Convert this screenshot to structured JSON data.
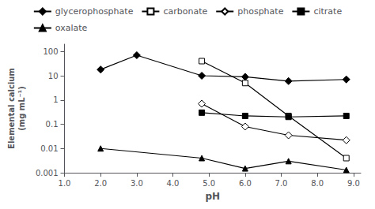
{
  "chart_data": {
    "type": "line",
    "log": "y",
    "color": "black",
    "xlabel": "pH",
    "ylabel": "Elemental calcium\n(mg mL⁻¹)",
    "xlim": [
      1.0,
      9.2
    ],
    "xticks": [
      {
        "value": 1,
        "label": "1.0"
      },
      {
        "value": 2,
        "label": "2.0"
      },
      {
        "value": 3,
        "label": "3.0"
      },
      {
        "value": 4,
        "label": "4.0"
      },
      {
        "value": 5,
        "label": "5.0"
      },
      {
        "value": 6,
        "label": "6.0"
      },
      {
        "value": 7,
        "label": "7.0"
      },
      {
        "value": 8,
        "label": "8.0"
      },
      {
        "value": 9,
        "label": "9.0"
      }
    ],
    "ylim": [
      0.001,
      200
    ],
    "yticks": [
      0.001,
      0.01,
      0.1,
      1,
      10,
      100
    ],
    "grid": false,
    "legend": "top",
    "series": [
      {
        "name": "glycerophosphate",
        "marker": "diamond",
        "x": [
          2.0,
          3.0,
          4.8,
          6.0,
          7.2,
          8.8
        ],
        "values": [
          18.0,
          70.0,
          10.0,
          9.0,
          6.0,
          7.0
        ]
      },
      {
        "name": "carbonate",
        "marker": "open-square",
        "x": [
          4.8,
          6.0,
          7.2,
          8.8
        ],
        "values": [
          40.0,
          5.0,
          0.22,
          0.004
        ]
      },
      {
        "name": "phosphate",
        "marker": "open-diamond",
        "x": [
          4.8,
          6.0,
          7.2,
          8.8
        ],
        "values": [
          0.7,
          0.08,
          0.035,
          0.022
        ]
      },
      {
        "name": "citrate",
        "marker": "square",
        "x": [
          4.8,
          6.0,
          7.2,
          8.8
        ],
        "values": [
          0.3,
          0.22,
          0.2,
          0.22
        ]
      },
      {
        "name": "oxalate",
        "marker": "triangle",
        "x": [
          2.0,
          4.8,
          6.0,
          7.2,
          8.8
        ],
        "values": [
          0.01,
          0.004,
          0.0015,
          0.003,
          0.0013
        ]
      }
    ]
  }
}
